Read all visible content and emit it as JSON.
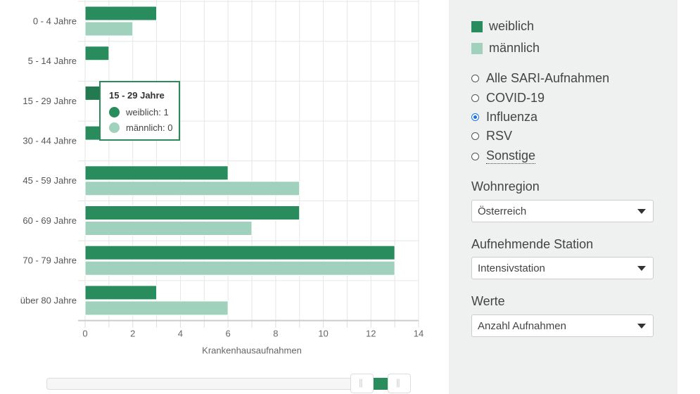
{
  "chart_data": {
    "type": "bar",
    "orientation": "horizontal",
    "categories": [
      "0 - 4 Jahre",
      "5 - 14 Jahre",
      "15 - 29 Jahre",
      "30 - 44 Jahre",
      "45 - 59 Jahre",
      "60 - 69 Jahre",
      "70 - 79 Jahre",
      "über 80 Jahre"
    ],
    "series": [
      {
        "name": "weiblich",
        "color": "#288c5c",
        "values": [
          3,
          1,
          1,
          1,
          6,
          9,
          13,
          3
        ]
      },
      {
        "name": "männlich",
        "color": "#a0d1bc",
        "values": [
          2,
          0,
          0,
          0,
          9,
          7,
          13,
          6
        ]
      }
    ],
    "xlabel": "Krankenhausaufnahmen",
    "xlim": [
      0,
      14
    ],
    "xticks": [
      "0",
      "2",
      "4",
      "6",
      "8",
      "10",
      "12",
      "14"
    ],
    "grid": true,
    "legend": "right panel"
  },
  "tooltip": {
    "title": "15 - 29 Jahre",
    "rows": [
      "weiblich: 1",
      "männlich: 0"
    ]
  },
  "legend": [
    "weiblich",
    "männlich"
  ],
  "radios": [
    {
      "label": "Alle SARI-Aufnahmen",
      "checked": false
    },
    {
      "label": "COVID-19",
      "checked": false
    },
    {
      "label": "Influenza",
      "checked": true
    },
    {
      "label": "RSV",
      "checked": false
    },
    {
      "label": "Sonstige",
      "checked": false
    }
  ],
  "filters": {
    "region_label": "Wohnregion",
    "region_value": "Österreich",
    "station_label": "Aufnehmende Station",
    "station_value": "Intensivstation",
    "werte_label": "Werte",
    "werte_value": "Anzahl Aufnahmen"
  },
  "slider": {
    "range_fraction": [
      0.91,
      1.0
    ]
  }
}
